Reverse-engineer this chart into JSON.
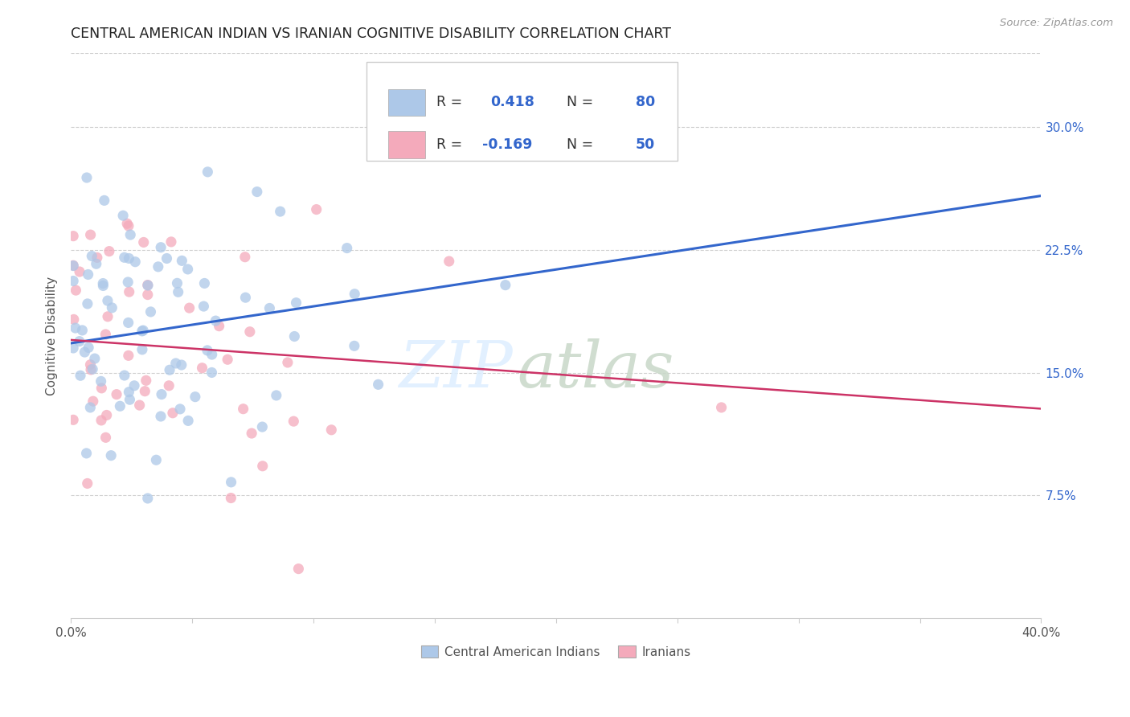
{
  "title": "CENTRAL AMERICAN INDIAN VS IRANIAN COGNITIVE DISABILITY CORRELATION CHART",
  "source": "Source: ZipAtlas.com",
  "ylabel": "Cognitive Disability",
  "ytick_values": [
    0.075,
    0.15,
    0.225,
    0.3
  ],
  "xlim": [
    0.0,
    0.4
  ],
  "ylim": [
    0.0,
    0.345
  ],
  "blue_color": "#adc8e8",
  "pink_color": "#f4aabb",
  "blue_line_color": "#3366cc",
  "pink_line_color": "#cc3366",
  "watermark_zip": "ZIP",
  "watermark_atlas": "atlas",
  "scatter_alpha": 0.75,
  "scatter_size": 90,
  "blue_r": 0.418,
  "blue_n": 80,
  "pink_r": -0.169,
  "pink_n": 50,
  "blue_line_y0": 0.168,
  "blue_line_y1": 0.258,
  "pink_line_y0": 0.17,
  "pink_line_y1": 0.128,
  "legend_text_color": "#3366cc",
  "legend_r_label_color": "#444444",
  "grid_color": "#d0d0d0",
  "axis_color": "#cccccc"
}
